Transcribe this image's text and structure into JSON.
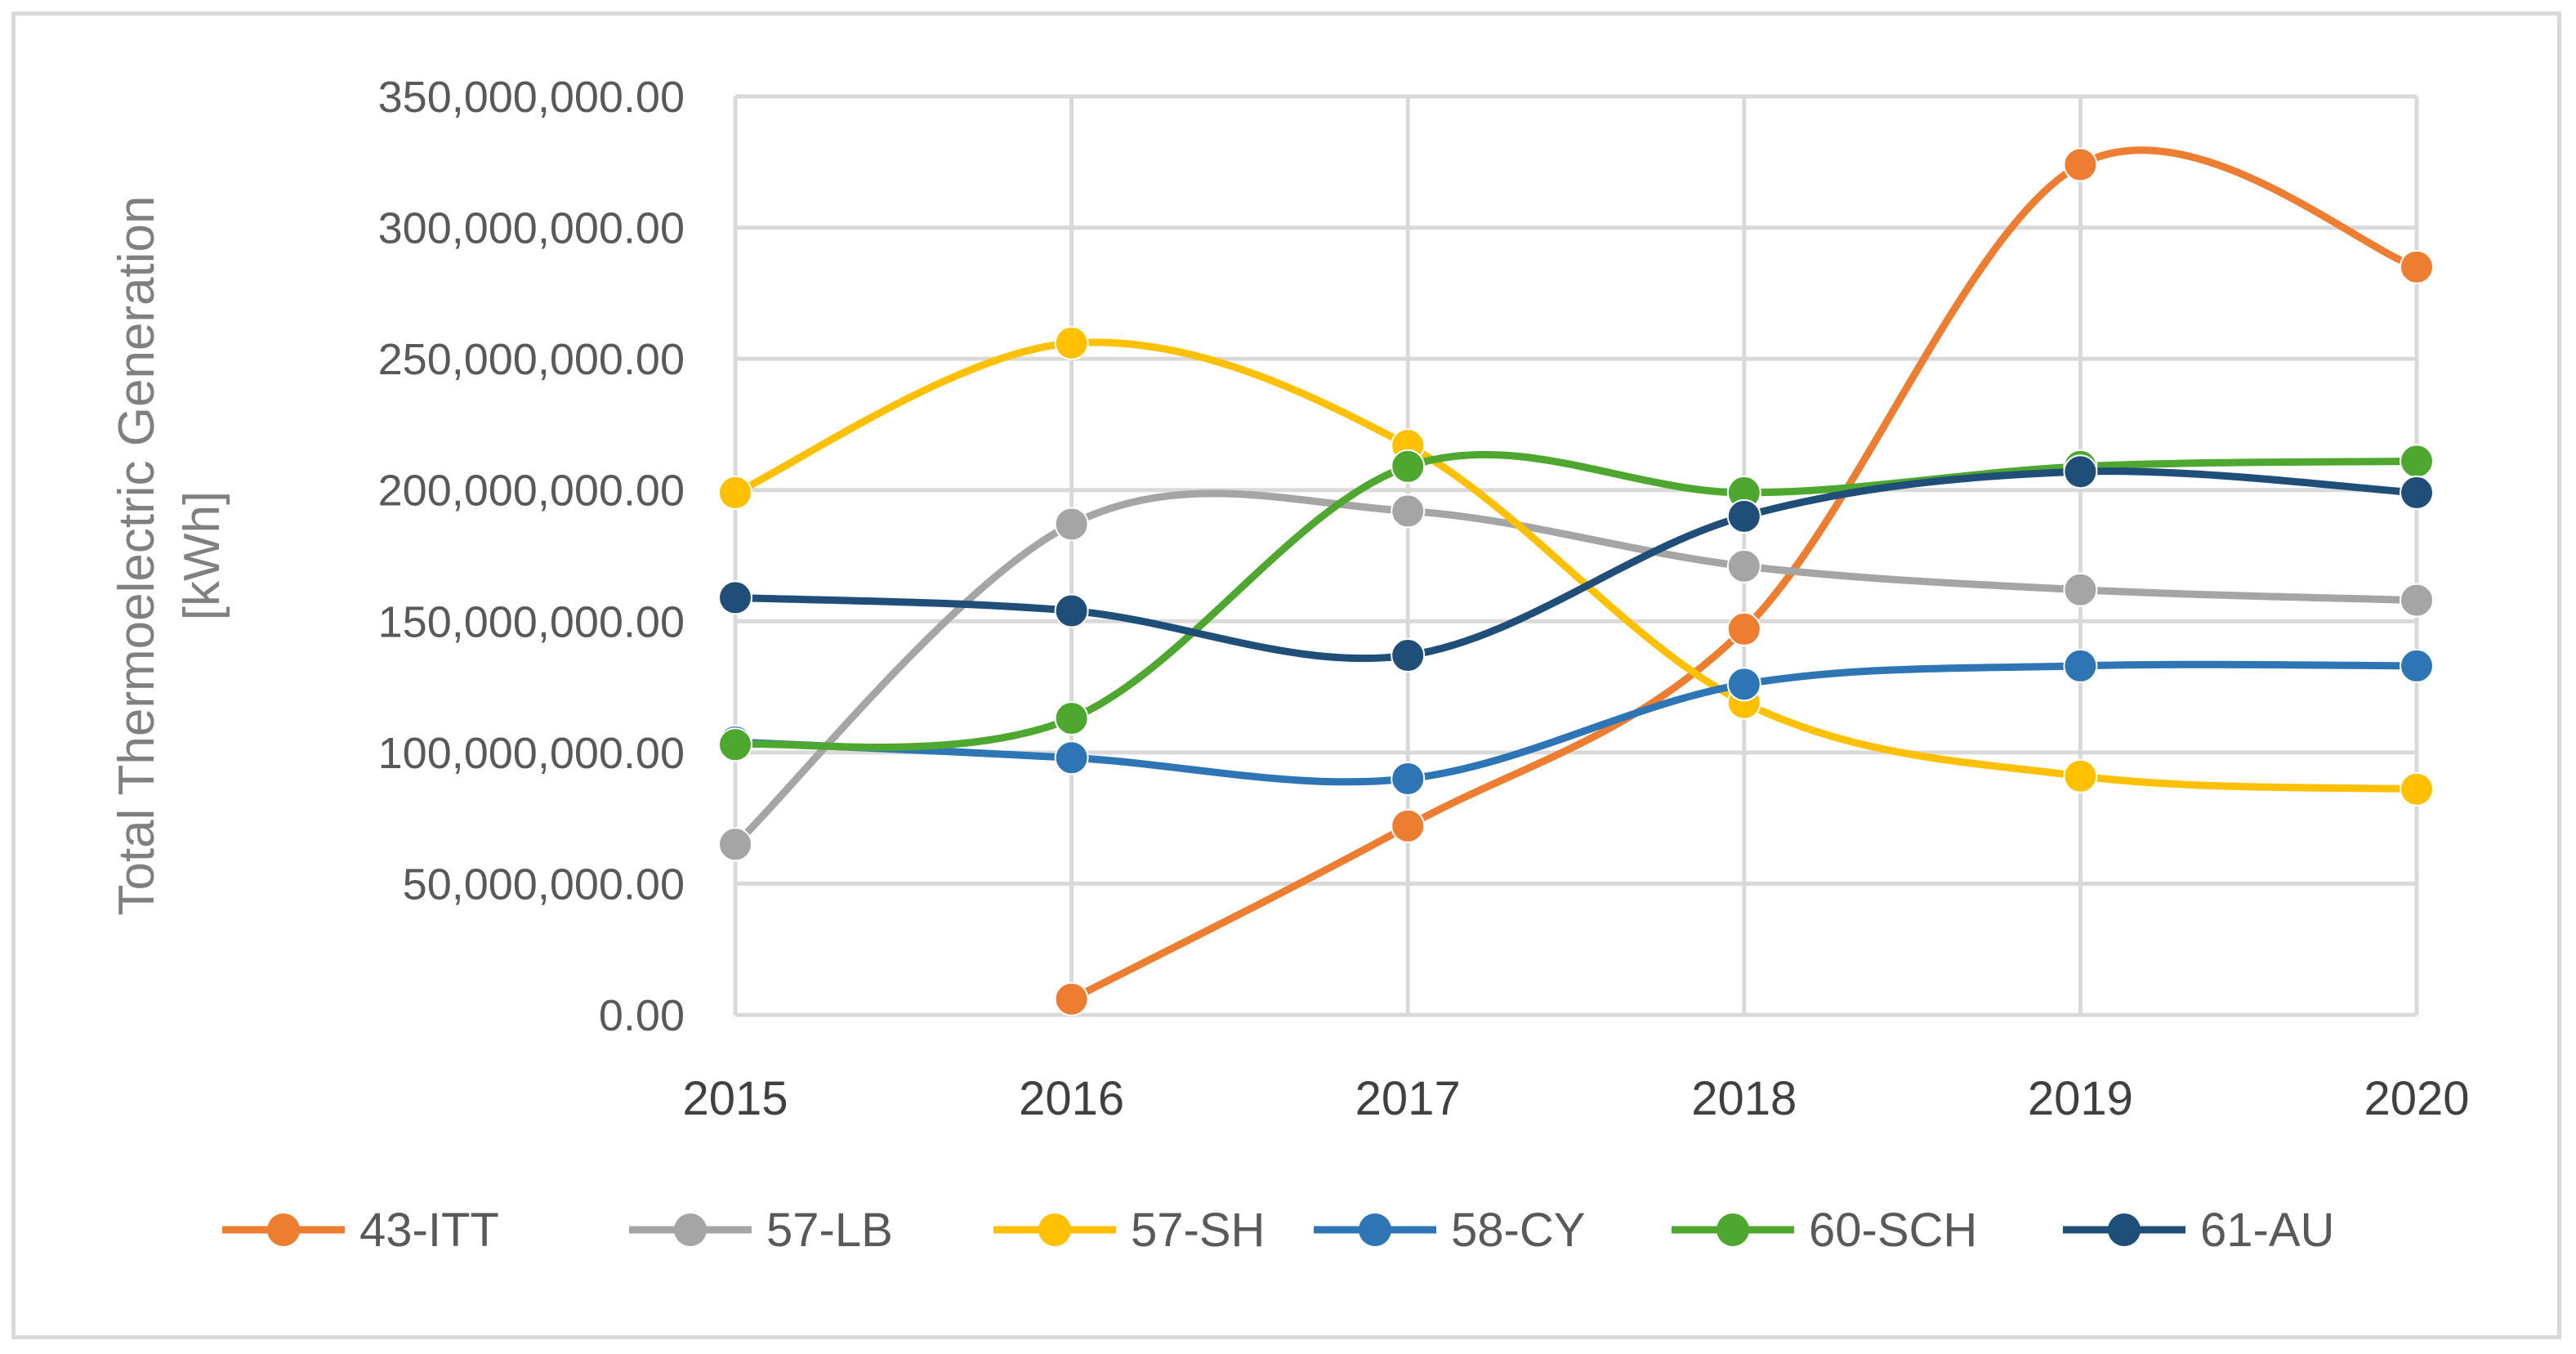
{
  "chart_data": {
    "type": "line",
    "title": "",
    "xlabel": "",
    "ylabel_lines": [
      "Total Thermoelectric Generation",
      "[kWh]"
    ],
    "x": [
      "2015",
      "2016",
      "2017",
      "2018",
      "2019",
      "2020"
    ],
    "ylim": [
      0,
      350000000
    ],
    "yticks": [
      0,
      50000000,
      100000000,
      150000000,
      200000000,
      250000000,
      300000000,
      350000000
    ],
    "ytick_labels": [
      "0.00",
      "50,000,000.00",
      "100,000,000.00",
      "150,000,000.00",
      "200,000,000.00",
      "250,000,000.00",
      "300,000,000.00",
      "350,000,000.00"
    ],
    "grid": true,
    "smooth": true,
    "legend_position": "bottom",
    "series": [
      {
        "name": "43-ITT",
        "color": "#ED7D31",
        "values": [
          null,
          6000000,
          72000000,
          147000000,
          324000000,
          285000000
        ]
      },
      {
        "name": "57-LB",
        "color": "#A5A5A5",
        "values": [
          65000000,
          187000000,
          192000000,
          171000000,
          162000000,
          158000000
        ]
      },
      {
        "name": "57-SH",
        "color": "#FFC000",
        "values": [
          199000000,
          256000000,
          217000000,
          119000000,
          91000000,
          86000000
        ]
      },
      {
        "name": "58-CY",
        "color": "#2E75B6",
        "values": [
          104000000,
          98000000,
          90000000,
          126000000,
          133000000,
          133000000
        ]
      },
      {
        "name": "60-SCH",
        "color": "#4EA72E",
        "values": [
          103000000,
          113000000,
          209000000,
          199000000,
          209000000,
          211000000
        ]
      },
      {
        "name": "61-AU",
        "color": "#1F4E79",
        "values": [
          159000000,
          154000000,
          137000000,
          190000000,
          207000000,
          199000000
        ]
      }
    ]
  }
}
